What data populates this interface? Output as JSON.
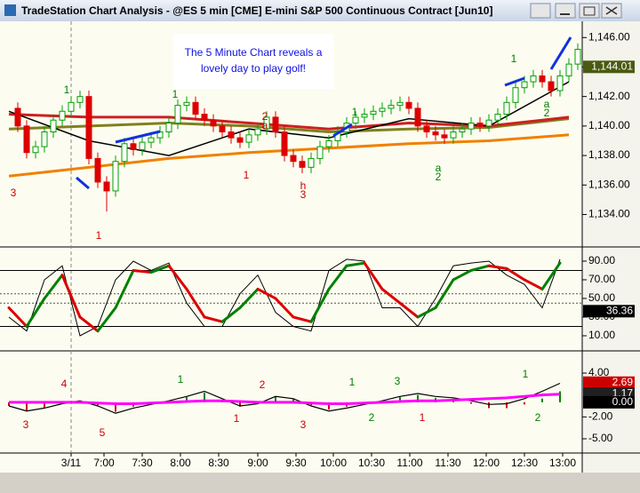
{
  "window": {
    "title": "TradeStation Chart Analysis - @ES 5 min [CME] E-mini S&P 500 Continuous Contract [Jun10]"
  },
  "chart_data": [
    {
      "type": "candlestick",
      "note_lines": [
        "The 5 Minute Chart reveals a",
        "lovely day to play golf!"
      ],
      "annotations": [
        "3",
        "1",
        "1",
        "1",
        "2",
        "a",
        "1",
        "h",
        "3",
        "1",
        "a",
        "2",
        "1",
        "a",
        "2"
      ],
      "xlim": [
        -1,
        64.5
      ],
      "xticks": [
        {
          "value": 7.0,
          "label": "3/11"
        },
        {
          "value": 10.7,
          "label": "7:00"
        },
        {
          "value": 15.0,
          "label": "7:30"
        },
        {
          "value": 19.3,
          "label": "8:00"
        },
        {
          "value": 23.6,
          "label": "8:30"
        },
        {
          "value": 28.0,
          "label": "9:00"
        },
        {
          "value": 32.3,
          "label": "9:30"
        },
        {
          "value": 36.5,
          "label": "10:00"
        },
        {
          "value": 40.8,
          "label": "10:30"
        },
        {
          "value": 45.1,
          "label": "11:00"
        },
        {
          "value": 49.4,
          "label": "11:30"
        },
        {
          "value": 53.7,
          "label": "12:00"
        },
        {
          "value": 58.0,
          "label": "12:30"
        },
        {
          "value": 62.3,
          "label": "13:00"
        }
      ],
      "ylim": [
        1131.8,
        1147.1
      ],
      "yticks": [
        {
          "value": 1134,
          "label": "1,134.00"
        },
        {
          "value": 1136,
          "label": "1,136.00"
        },
        {
          "value": 1138,
          "label": "1,138.00"
        },
        {
          "value": 1140,
          "label": "1,140.00"
        },
        {
          "value": 1142,
          "label": "1,142.00"
        },
        {
          "value": 1144,
          "label": "1,144.00"
        },
        {
          "value": 1146,
          "label": "1,146.00"
        }
      ],
      "tags": [
        {
          "value": 1144.01,
          "label": "1,144.01",
          "color": "#4a5a10"
        }
      ],
      "up_color": "#00a000",
      "down_color": "#dd0000",
      "open": [
        1141.2,
        1140.0,
        1138.2,
        1138.6,
        1139.6,
        1140.4,
        1141.0,
        1141.6,
        1142.0,
        1137.8,
        1136.2,
        1135.6,
        1137.6,
        1138.8,
        1138.4,
        1138.9,
        1139.2,
        1139.6,
        1140.2,
        1141.4,
        1141.6,
        1140.8,
        1140.4,
        1140.0,
        1139.6,
        1139.2,
        1138.9,
        1139.4,
        1139.8,
        1140.6,
        1139.6,
        1138.0,
        1137.6,
        1137.2,
        1137.8,
        1138.6,
        1139.0,
        1139.6,
        1140.2,
        1140.6,
        1140.8,
        1141.0,
        1141.2,
        1141.4,
        1141.6,
        1141.2,
        1140.0,
        1139.6,
        1139.4,
        1139.2,
        1139.6,
        1139.8,
        1140.2,
        1140.0,
        1140.4,
        1140.8,
        1141.6,
        1142.6,
        1143.0,
        1143.4,
        1143.0,
        1142.4,
        1143.4,
        1144.2
      ],
      "high": [
        1141.6,
        1140.4,
        1139.0,
        1140.0,
        1140.8,
        1141.4,
        1142.0,
        1142.4,
        1142.4,
        1138.2,
        1136.6,
        1138.0,
        1139.2,
        1139.2,
        1139.3,
        1139.6,
        1140.0,
        1140.6,
        1141.8,
        1142.0,
        1142.0,
        1141.2,
        1140.8,
        1140.4,
        1140.0,
        1139.6,
        1139.8,
        1140.2,
        1141.0,
        1141.0,
        1140.0,
        1138.4,
        1138.0,
        1138.2,
        1139.0,
        1139.4,
        1140.0,
        1140.6,
        1141.0,
        1141.2,
        1141.4,
        1141.6,
        1141.8,
        1142.0,
        1142.0,
        1141.6,
        1140.4,
        1140.0,
        1139.8,
        1140.0,
        1140.2,
        1140.6,
        1140.6,
        1140.8,
        1141.2,
        1142.0,
        1143.0,
        1143.4,
        1143.8,
        1143.8,
        1143.4,
        1143.8,
        1144.6,
        1145.6
      ],
      "low": [
        1139.6,
        1137.8,
        1137.8,
        1138.2,
        1139.2,
        1140.0,
        1140.6,
        1141.2,
        1137.4,
        1135.8,
        1134.2,
        1135.2,
        1137.2,
        1138.0,
        1138.0,
        1138.5,
        1138.8,
        1139.2,
        1139.8,
        1141.0,
        1140.4,
        1140.0,
        1139.6,
        1139.2,
        1138.8,
        1138.5,
        1138.5,
        1139.0,
        1139.4,
        1139.2,
        1137.6,
        1137.2,
        1136.8,
        1136.8,
        1137.4,
        1138.2,
        1138.6,
        1139.2,
        1139.8,
        1140.2,
        1140.4,
        1140.6,
        1140.8,
        1141.0,
        1140.8,
        1139.6,
        1139.2,
        1139.0,
        1138.8,
        1138.8,
        1139.2,
        1139.4,
        1139.6,
        1139.6,
        1140.0,
        1140.4,
        1141.2,
        1142.2,
        1142.6,
        1142.6,
        1142.0,
        1142.0,
        1143.0,
        1143.8
      ],
      "close": [
        1140.0,
        1138.2,
        1138.6,
        1139.6,
        1140.4,
        1141.0,
        1141.6,
        1142.0,
        1137.8,
        1136.2,
        1135.6,
        1137.6,
        1138.8,
        1138.4,
        1138.9,
        1139.2,
        1139.6,
        1140.2,
        1141.4,
        1141.6,
        1140.8,
        1140.4,
        1140.0,
        1139.6,
        1139.2,
        1138.9,
        1139.4,
        1139.8,
        1140.6,
        1139.6,
        1138.0,
        1137.6,
        1137.2,
        1137.8,
        1138.6,
        1139.0,
        1139.6,
        1140.2,
        1140.6,
        1140.8,
        1141.0,
        1141.2,
        1141.4,
        1141.6,
        1141.2,
        1140.0,
        1139.6,
        1139.4,
        1139.2,
        1139.6,
        1139.8,
        1140.2,
        1140.0,
        1140.4,
        1140.8,
        1141.6,
        1142.6,
        1143.0,
        1143.4,
        1143.0,
        1142.4,
        1143.4,
        1144.2,
        1145.2
      ],
      "lines": [
        {
          "color": "#f08000",
          "width": 3,
          "x": [
            0,
            9,
            18,
            27,
            36,
            45,
            54,
            63
          ],
          "values": [
            1136.6,
            1137.2,
            1137.8,
            1138.2,
            1138.5,
            1138.8,
            1139.0,
            1139.4
          ]
        },
        {
          "color": "#808020",
          "width": 3,
          "x": [
            0,
            9,
            18,
            27,
            36,
            45,
            54,
            63
          ],
          "values": [
            1139.8,
            1140.0,
            1140.2,
            1140.0,
            1139.6,
            1139.8,
            1139.9,
            1140.5
          ]
        },
        {
          "color": "#cc2020",
          "width": 3,
          "x": [
            0,
            9,
            18,
            27,
            36,
            45,
            54,
            63
          ],
          "values": [
            1140.8,
            1140.6,
            1140.6,
            1140.2,
            1139.8,
            1140.2,
            1140.0,
            1140.6
          ]
        },
        {
          "color": "#000000",
          "width": 1.5,
          "x": [
            0,
            9,
            18,
            27,
            36,
            45,
            54,
            63
          ],
          "values": [
            1141.0,
            1139.0,
            1138.0,
            1139.8,
            1139.2,
            1140.5,
            1140.0,
            1143.0
          ]
        }
      ]
    },
    {
      "type": "oscillator",
      "xlim": [
        -1,
        64.5
      ],
      "ylim": [
        -6.2,
        105.2
      ],
      "yticks": [
        {
          "value": 10,
          "label": "10.00"
        },
        {
          "value": 30,
          "label": "30.00"
        },
        {
          "value": 50,
          "label": "50.00"
        },
        {
          "value": 70,
          "label": "70.00"
        },
        {
          "value": 90,
          "label": "90.00"
        }
      ],
      "levels": [
        20,
        80
      ],
      "dotted_levels": [
        45,
        55
      ],
      "tags": [
        {
          "value": 36.36,
          "label": "36.36",
          "color": "#000000"
        }
      ],
      "fast": {
        "color": "#000000",
        "x": [
          0,
          2,
          4,
          6,
          8,
          10,
          12,
          14,
          16,
          18,
          20,
          22,
          24,
          26,
          28,
          30,
          32,
          34,
          36,
          38,
          40,
          42,
          44,
          46,
          48,
          50,
          52,
          54,
          56,
          58,
          60,
          62
        ],
        "values": [
          30,
          15,
          70,
          85,
          10,
          20,
          70,
          90,
          80,
          88,
          45,
          20,
          20,
          55,
          75,
          35,
          20,
          15,
          80,
          92,
          90,
          40,
          40,
          20,
          50,
          85,
          88,
          90,
          75,
          65,
          40,
          92
        ]
      },
      "slow": {
        "up_color": "#008000",
        "down_color": "#dd0000",
        "x": [
          0,
          2,
          4,
          6,
          8,
          10,
          12,
          14,
          16,
          18,
          20,
          22,
          24,
          26,
          28,
          30,
          32,
          34,
          36,
          38,
          40,
          42,
          44,
          46,
          48,
          50,
          52,
          54,
          56,
          58,
          60,
          62
        ],
        "values": [
          40,
          20,
          50,
          75,
          30,
          15,
          40,
          80,
          78,
          85,
          60,
          30,
          25,
          40,
          60,
          50,
          30,
          25,
          60,
          85,
          88,
          60,
          45,
          30,
          40,
          70,
          80,
          85,
          82,
          70,
          60,
          88
        ]
      }
    },
    {
      "type": "macd",
      "annotations": [
        "3",
        "4",
        "5",
        "1",
        "2",
        "1",
        "3",
        "1",
        "2",
        "3",
        "1",
        "1",
        "2"
      ],
      "xlim": [
        -1,
        64.5
      ],
      "ylim": [
        -6.95,
        7.04
      ],
      "yticks": [
        {
          "value": 4,
          "label": "4.00"
        },
        {
          "value": -2,
          "label": "-2.00"
        },
        {
          "value": -5,
          "label": "-5.00"
        }
      ],
      "tags": [
        {
          "value": 2.69,
          "label": "2.69",
          "color": "#cc0000"
        },
        {
          "value": 1.17,
          "label": "1.17",
          "color": "#202020"
        },
        {
          "value": 0,
          "label": "0.00",
          "color": "#000000"
        }
      ],
      "x": [
        0,
        2,
        4,
        6,
        8,
        10,
        12,
        14,
        16,
        18,
        20,
        22,
        24,
        26,
        28,
        30,
        32,
        34,
        36,
        38,
        40,
        42,
        44,
        46,
        48,
        50,
        52,
        54,
        56,
        58,
        60,
        62
      ],
      "histogram": {
        "pos_color": "#008000",
        "neg_color": "#cc0000",
        "values": [
          -0.5,
          -1.2,
          -0.8,
          -0.2,
          0.2,
          -0.4,
          -1.3,
          -0.6,
          -0.2,
          0.2,
          0.7,
          1.3,
          0.3,
          -0.6,
          -0.2,
          0.8,
          0.5,
          -0.4,
          -1.0,
          -0.6,
          -0.2,
          0.2,
          0.7,
          1.0,
          0.6,
          0.3,
          -0.2,
          -0.8,
          -0.8,
          -0.3,
          0.5,
          1.5
        ]
      },
      "lines": [
        {
          "color": "#000000",
          "width": 1.2,
          "values": [
            -0.5,
            -1.2,
            -0.8,
            -0.2,
            0.2,
            -0.5,
            -1.5,
            -0.8,
            -0.3,
            0.2,
            0.8,
            1.5,
            0.5,
            -0.5,
            -0.2,
            0.8,
            0.5,
            -0.5,
            -1.2,
            -0.8,
            -0.3,
            0.2,
            0.8,
            1.2,
            0.8,
            0.6,
            0.2,
            -0.3,
            -0.2,
            0.5,
            1.5,
            2.6
          ]
        },
        {
          "color": "#ff00ff",
          "width": 3,
          "values": [
            0,
            0,
            0,
            0,
            0,
            -0.1,
            -0.2,
            -0.2,
            -0.1,
            0,
            0.1,
            0.2,
            0.2,
            0.1,
            0,
            0,
            0,
            -0.1,
            -0.2,
            -0.2,
            -0.1,
            0,
            0.1,
            0.2,
            0.2,
            0.3,
            0.4,
            0.5,
            0.6,
            0.8,
            1.0,
            1.1
          ]
        }
      ]
    }
  ]
}
